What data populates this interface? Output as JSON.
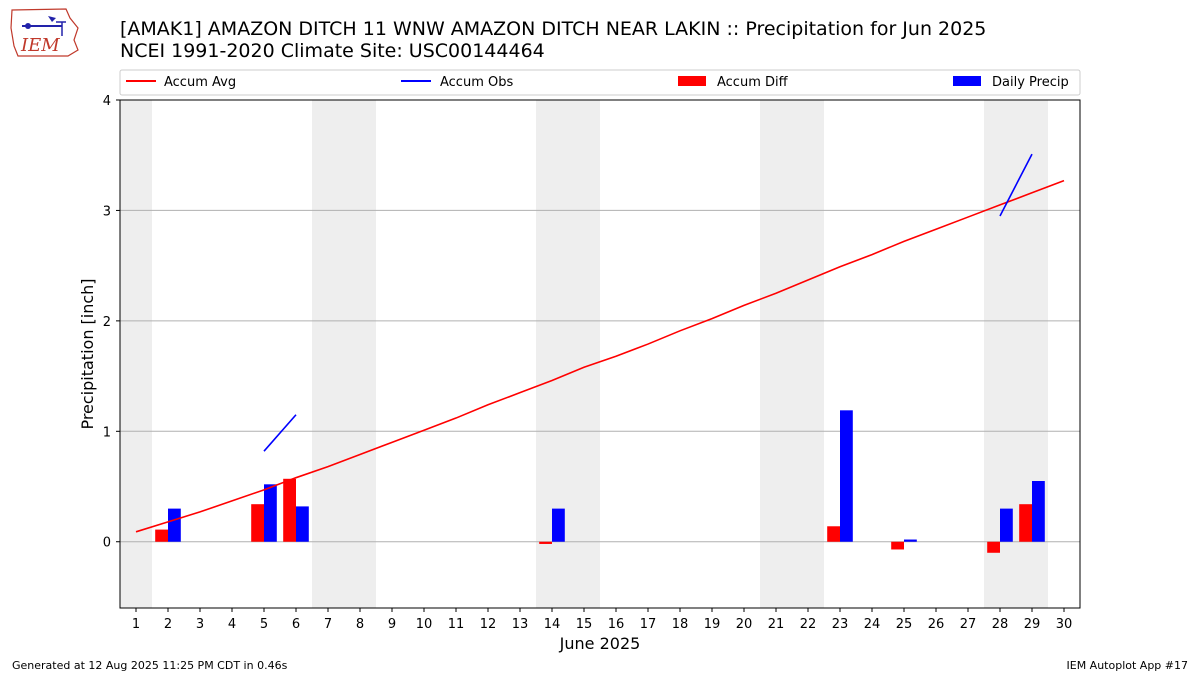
{
  "header": {
    "title_line1": "[AMAK1] AMAZON DITCH 11 WNW AMAZON DITCH NEAR LAKIN :: Precipitation for Jun 2025",
    "title_line2": "NCEI 1991-2020 Climate Site: USC00144464",
    "logo_text": "IEM"
  },
  "footer": {
    "left": "Generated at 12 Aug 2025 11:25 PM CDT in 0.46s",
    "right": "IEM Autoplot App #17"
  },
  "colors": {
    "accum_avg": "#ff0000",
    "accum_obs": "#0000ff",
    "accum_diff": "#ff0000",
    "daily_precip": "#0000ff",
    "weekend_shade": "#eeeeee",
    "grid": "#b0b0b0"
  },
  "chart_data": {
    "type": "bar",
    "xlabel": "June 2025",
    "ylabel": "Precipitation [inch]",
    "xlim": [
      0.5,
      30.5
    ],
    "ylim": [
      -0.6,
      4.0
    ],
    "yticks": [
      0,
      1,
      2,
      3,
      4
    ],
    "grid": "horizontal",
    "legend_position": "top",
    "legend": [
      "Accum Avg",
      "Accum Obs",
      "Accum Diff",
      "Daily Precip"
    ],
    "days": [
      1,
      2,
      3,
      4,
      5,
      6,
      7,
      8,
      9,
      10,
      11,
      12,
      13,
      14,
      15,
      16,
      17,
      18,
      19,
      20,
      21,
      22,
      23,
      24,
      25,
      26,
      27,
      28,
      29,
      30
    ],
    "weekend_days": [
      1,
      7,
      8,
      14,
      15,
      21,
      22,
      28,
      29
    ],
    "accum_avg": [
      0.09,
      0.18,
      0.27,
      0.37,
      0.47,
      0.58,
      0.68,
      0.79,
      0.9,
      1.01,
      1.12,
      1.24,
      1.35,
      1.46,
      1.58,
      1.68,
      1.79,
      1.91,
      2.02,
      2.14,
      2.25,
      2.37,
      2.49,
      2.6,
      2.72,
      2.83,
      2.94,
      3.05,
      3.16,
      3.27
    ],
    "accum_obs_segments": [
      {
        "days": [
          5,
          6
        ],
        "values": [
          0.82,
          1.15
        ]
      },
      {
        "days": [
          28,
          29
        ],
        "values": [
          2.95,
          3.51
        ]
      }
    ],
    "accum_diff": [
      {
        "day": 2,
        "value": 0.11
      },
      {
        "day": 5,
        "value": 0.34
      },
      {
        "day": 6,
        "value": 0.57
      },
      {
        "day": 14,
        "value": -0.02
      },
      {
        "day": 23,
        "value": 0.14
      },
      {
        "day": 25,
        "value": -0.07
      },
      {
        "day": 28,
        "value": -0.1
      },
      {
        "day": 29,
        "value": 0.34
      }
    ],
    "daily_precip": [
      {
        "day": 2,
        "value": 0.3
      },
      {
        "day": 5,
        "value": 0.52
      },
      {
        "day": 6,
        "value": 0.32
      },
      {
        "day": 14,
        "value": 0.3
      },
      {
        "day": 23,
        "value": 1.19
      },
      {
        "day": 25,
        "value": 0.02
      },
      {
        "day": 28,
        "value": 0.3
      },
      {
        "day": 29,
        "value": 0.55
      }
    ]
  }
}
